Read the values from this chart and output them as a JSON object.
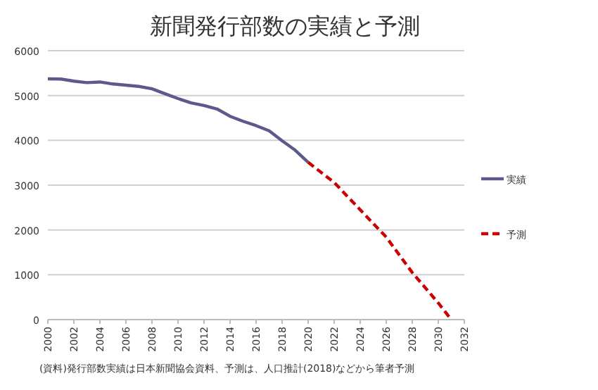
{
  "chart_data": {
    "type": "line",
    "title": "新聞発行部数の実績と予測",
    "annotations": [
      "(資料)発行部数実績は日本新聞協会資料、予測は、人口推計(2018)などから筆者予測"
    ],
    "xlim": [
      2000,
      2032
    ],
    "xticks": [
      2000,
      2002,
      2004,
      2006,
      2008,
      2010,
      2012,
      2014,
      2016,
      2018,
      2020,
      2022,
      2024,
      2026,
      2028,
      2030,
      2032
    ],
    "ylim": [
      0,
      6000
    ],
    "yticks": [
      0,
      1000,
      2000,
      3000,
      4000,
      5000,
      6000
    ],
    "grid": "y",
    "legend": "right",
    "series": [
      {
        "name": "実績",
        "color": "#5b5a8a",
        "line_style": "solid",
        "x": [
          2000,
          2001,
          2002,
          2003,
          2004,
          2005,
          2006,
          2007,
          2008,
          2009,
          2010,
          2011,
          2012,
          2013,
          2014,
          2015,
          2016,
          2017,
          2018,
          2019,
          2020
        ],
        "values": [
          5371,
          5368,
          5320,
          5287,
          5302,
          5257,
          5231,
          5203,
          5149,
          5040,
          4932,
          4835,
          4778,
          4700,
          4536,
          4425,
          4328,
          4213,
          3990,
          3781,
          3509
        ]
      },
      {
        "name": "予測",
        "color": "#cc0000",
        "line_style": "dashed",
        "x": [
          2020,
          2022,
          2024,
          2026,
          2028,
          2030,
          2031
        ],
        "values": [
          3509,
          3060,
          2450,
          1840,
          1050,
          370,
          0
        ]
      }
    ]
  }
}
